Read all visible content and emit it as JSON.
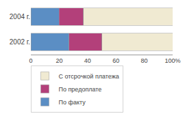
{
  "chart_data": {
    "type": "bar",
    "orientation": "horizontal",
    "stacked": true,
    "categories": [
      "2004 г.",
      "2002 г."
    ],
    "series": [
      {
        "name": "По факту",
        "color": "#5b8ec4",
        "values": [
          20,
          27
        ]
      },
      {
        "name": "По предоплате",
        "color": "#b3407a",
        "values": [
          17,
          23
        ]
      },
      {
        "name": "С отсрочкой платежа",
        "color": "#f0ead2",
        "values": [
          63,
          50
        ]
      }
    ],
    "xlim": [
      0,
      100
    ],
    "xticks": [
      0,
      20,
      40,
      60,
      80,
      {
        "value": 100,
        "label": "100%"
      }
    ],
    "grid": false,
    "legend": "bottom"
  }
}
